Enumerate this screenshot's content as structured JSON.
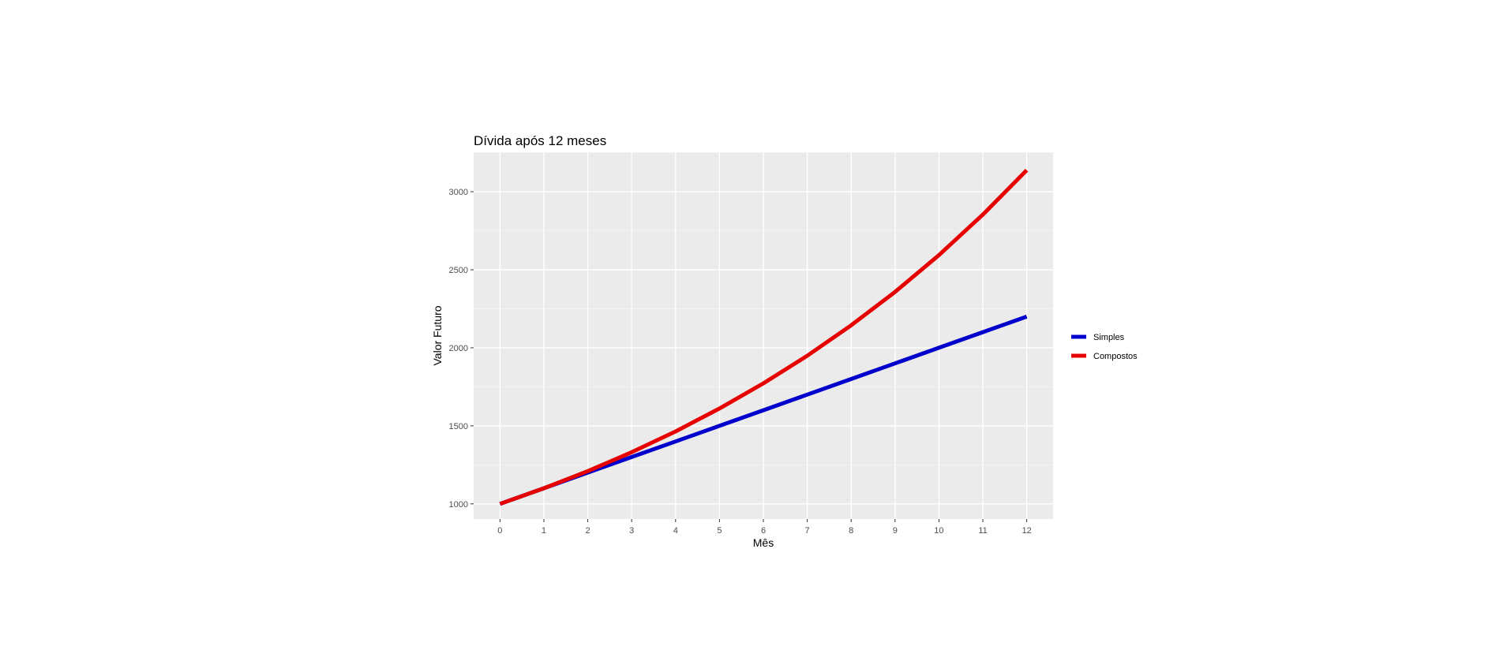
{
  "chart_data": {
    "type": "line",
    "title": "Dívida após 12 meses",
    "xlabel": "Mês",
    "ylabel": "Valor Futuro",
    "x": [
      0,
      1,
      2,
      3,
      4,
      5,
      6,
      7,
      8,
      9,
      10,
      11,
      12
    ],
    "xticks": [
      "0",
      "1",
      "2",
      "3",
      "4",
      "5",
      "6",
      "7",
      "8",
      "9",
      "10",
      "11",
      "12"
    ],
    "yticks": [
      "1000",
      "1500",
      "2000",
      "2500",
      "3000"
    ],
    "ytick_values": [
      1000,
      1500,
      2000,
      2500,
      3000
    ],
    "xlim": [
      -0.6,
      12.6
    ],
    "ylim": [
      903,
      3253
    ],
    "grid": true,
    "legend": "right",
    "series": [
      {
        "name": "Simples",
        "color": "#0000cd",
        "values": [
          1000,
          1100,
          1200,
          1300,
          1400,
          1500,
          1600,
          1700,
          1800,
          1900,
          2000,
          2100,
          2200
        ]
      },
      {
        "name": "Compostos",
        "color": "#e60000",
        "values": [
          1000,
          1100,
          1210,
          1331,
          1464,
          1611,
          1772,
          1949,
          2144,
          2358,
          2594,
          2853,
          3138
        ]
      }
    ]
  }
}
